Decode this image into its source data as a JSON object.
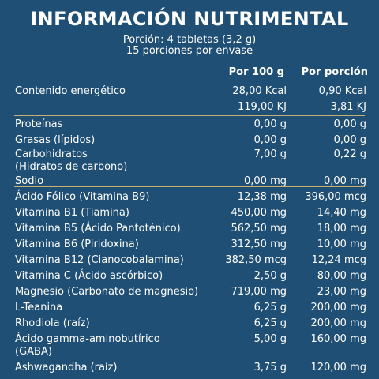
{
  "title": "INFORMACIÓN NUTRIMENTAL",
  "serving_line1": "Porción: 4 tabletas (3,2 g)",
  "serving_line2": "15 porciones por envase",
  "headers": {
    "per100": "Por 100 g",
    "perServing": "Por porción"
  },
  "rows": [
    {
      "label": "Contenido energético",
      "per100": "28,00 Kcal",
      "perServing": "0,90 Kcal"
    },
    {
      "label": "",
      "per100": "119,00 KJ",
      "perServing": "3,81 KJ"
    },
    {
      "label": "Proteínas",
      "per100": "0,00 g",
      "perServing": "0,00 g"
    },
    {
      "label": "Grasas (lípidos)",
      "per100": "0,00 g",
      "perServing": "0,00 g"
    },
    {
      "label": "Carbohidratos\n(Hidratos de carbono)",
      "per100": "7,00 g",
      "perServing": "0,22 g"
    },
    {
      "label": "Sodio",
      "per100": "0,00 mg",
      "perServing": "0,00 mg"
    },
    {
      "label": "Ácido Fólico (Vitamina B9)",
      "per100": "12,38 mg",
      "perServing": "396,00 mcg"
    },
    {
      "label": "Vitamina B1 (Tiamina)",
      "per100": "450,00 mg",
      "perServing": "14,40 mg"
    },
    {
      "label": "Vitamina B5 (Ácido Pantoténico)",
      "per100": "562,50 mg",
      "perServing": "18,00 mg"
    },
    {
      "label": "Vitamina B6 (Piridoxina)",
      "per100": "312,50 mg",
      "perServing": "10,00 mg"
    },
    {
      "label": "Vitamina B12 (Cianocobalamina)",
      "per100": "382,50 mcg",
      "perServing": "12,24 mcg"
    },
    {
      "label": "Vitamina C (Ácido ascórbico)",
      "per100": "2,50 g",
      "perServing": "80,00 mg"
    },
    {
      "label": "Magnesio (Carbonato de magnesio)",
      "per100": "719,00 mg",
      "perServing": "23,00 mg"
    },
    {
      "label": "L-Teanina",
      "per100": "6,25 g",
      "perServing": "200,00 mg"
    },
    {
      "label": "Rhodiola (raíz)",
      "per100": "6,25 g",
      "perServing": "200,00 mg"
    },
    {
      "label": "Ácido gamma-aminobutírico\n(GABA)",
      "per100": "5,00 g",
      "perServing": "160,00 mg"
    },
    {
      "label": "Ashwagandha (raíz)",
      "per100": "3,75 g",
      "perServing": "120,00 mg"
    }
  ],
  "colors": {
    "background": "#1f4f74",
    "text": "#ffffff",
    "separator": "#c7b070"
  }
}
